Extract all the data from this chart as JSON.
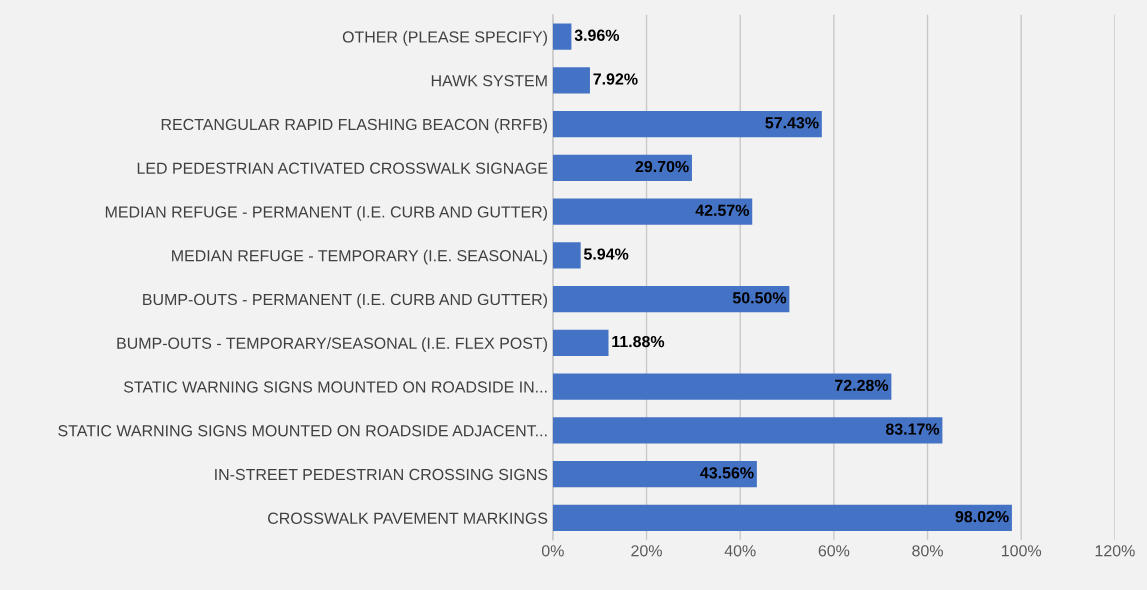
{
  "chart_data": {
    "type": "bar",
    "orientation": "horizontal",
    "categories": [
      "OTHER (PLEASE SPECIFY)",
      "HAWK SYSTEM",
      "RECTANGULAR RAPID FLASHING BEACON (RRFB)",
      "LED PEDESTRIAN ACTIVATED CROSSWALK SIGNAGE",
      "MEDIAN REFUGE - PERMANENT (I.E. CURB AND GUTTER)",
      "MEDIAN REFUGE - TEMPORARY (I.E. SEASONAL)",
      "BUMP-OUTS - PERMANENT (I.E. CURB AND GUTTER)",
      "BUMP-OUTS - TEMPORARY/SEASONAL (I.E. FLEX POST)",
      "STATIC WARNING SIGNS MOUNTED ON ROADSIDE IN...",
      "STATIC WARNING SIGNS MOUNTED ON ROADSIDE ADJACENT...",
      "IN-STREET PEDESTRIAN CROSSING SIGNS",
      "CROSSWALK PAVEMENT MARKINGS"
    ],
    "values": [
      3.96,
      7.92,
      57.43,
      29.7,
      42.57,
      5.94,
      50.5,
      11.88,
      72.28,
      83.17,
      43.56,
      98.02
    ],
    "value_labels": [
      "3.96%",
      "7.92%",
      "57.43%",
      "29.70%",
      "42.57%",
      "5.94%",
      "50.50%",
      "11.88%",
      "72.28%",
      "83.17%",
      "43.56%",
      "98.02%"
    ],
    "color": "#4472c4",
    "xlim": [
      0,
      120
    ],
    "xticks": [
      {
        "value": 0,
        "label": "0%"
      },
      {
        "value": 20,
        "label": "20%"
      },
      {
        "value": 40,
        "label": "40%"
      },
      {
        "value": 60,
        "label": "60%"
      },
      {
        "value": 80,
        "label": "80%"
      },
      {
        "value": 100,
        "label": "100%"
      },
      {
        "value": 120,
        "label": "120%"
      }
    ],
    "grid": "x"
  }
}
